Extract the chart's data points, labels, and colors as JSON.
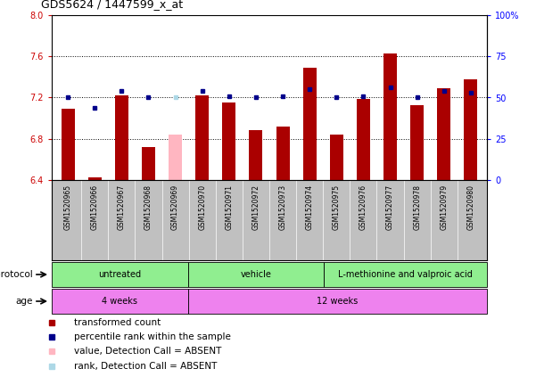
{
  "title": "GDS5624 / 1447599_x_at",
  "samples": [
    "GSM1520965",
    "GSM1520966",
    "GSM1520967",
    "GSM1520968",
    "GSM1520969",
    "GSM1520970",
    "GSM1520971",
    "GSM1520972",
    "GSM1520973",
    "GSM1520974",
    "GSM1520975",
    "GSM1520976",
    "GSM1520977",
    "GSM1520978",
    "GSM1520979",
    "GSM1520980"
  ],
  "red_values": [
    7.09,
    6.43,
    7.22,
    6.72,
    6.84,
    7.22,
    7.15,
    6.88,
    6.92,
    7.49,
    6.84,
    7.19,
    7.63,
    7.13,
    7.29,
    7.38
  ],
  "blue_values": [
    50,
    44,
    54,
    50,
    50,
    54,
    51,
    50,
    51,
    55,
    50,
    51,
    56,
    50,
    54,
    53
  ],
  "absent_indices": [
    4
  ],
  "ylim_left": [
    6.4,
    8.0
  ],
  "ylim_right": [
    0,
    100
  ],
  "yticks_left": [
    6.4,
    6.8,
    7.2,
    7.6,
    8.0
  ],
  "yticks_right": [
    0,
    25,
    50,
    75,
    100
  ],
  "protocol_groups": [
    {
      "label": "untreated",
      "start": 0,
      "end": 4
    },
    {
      "label": "vehicle",
      "start": 5,
      "end": 9
    },
    {
      "label": "L-methionine and valproic acid",
      "start": 10,
      "end": 15
    }
  ],
  "age_groups": [
    {
      "label": "4 weeks",
      "start": 0,
      "end": 4
    },
    {
      "label": "12 weeks",
      "start": 5,
      "end": 15
    }
  ],
  "bar_color_normal": "#AA0000",
  "bar_color_absent": "#FFB6C1",
  "dot_color_normal": "#00008B",
  "dot_color_absent": "#ADD8E6",
  "bar_width": 0.5,
  "proto_color": "#90EE90",
  "age_color": "#EE82EE",
  "xtick_bg_color": "#C0C0C0",
  "label_protocol": "protocol",
  "label_age": "age"
}
